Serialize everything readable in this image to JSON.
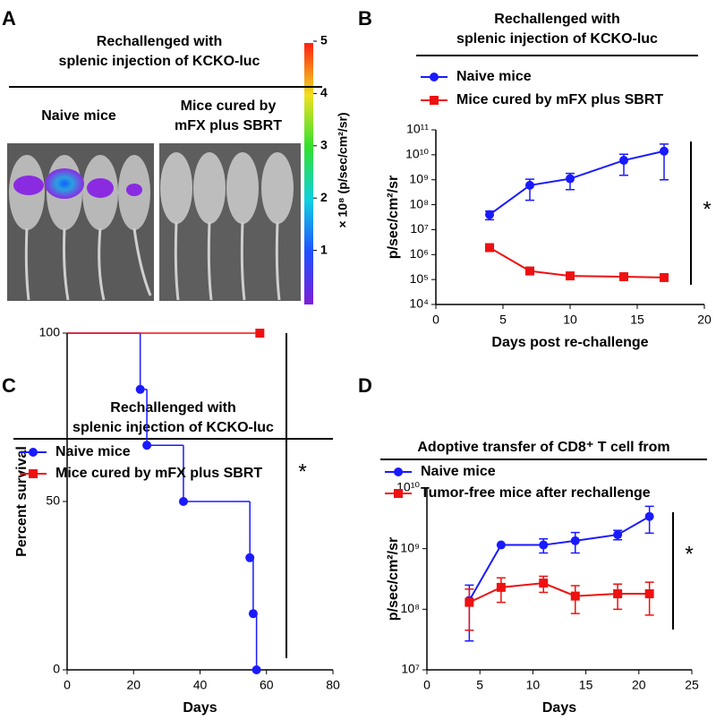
{
  "panel_a": {
    "label": "A",
    "title": [
      "Rechallenged with",
      "splenic injection of KCKO-luc"
    ],
    "groups": [
      [
        "Naive mice"
      ],
      [
        "Mice cured by",
        "mFX plus SBRT"
      ]
    ],
    "colorbar": {
      "clim": [
        0,
        5
      ],
      "ticks": [
        1,
        2,
        3,
        4,
        5
      ],
      "label": "× 10⁸ (p/sec/cm²/sr)"
    }
  },
  "chart_data": [
    {
      "type": "line",
      "label": "B",
      "title": [
        "Rechallenged with",
        "splenic injection of KCKO-luc"
      ],
      "xlabel": "Days post re-challenge",
      "ylabel": "p/sec/cm²/sr",
      "log_y": true,
      "xlim": [
        0,
        20
      ],
      "xticks": [
        0,
        5,
        10,
        15,
        20
      ],
      "ylim": [
        10000,
        100000000000
      ],
      "yticks": [
        {
          "value": 10000,
          "label": "10⁴"
        },
        {
          "value": 100000,
          "label": "10⁵"
        },
        {
          "value": 1000000,
          "label": "10⁶"
        },
        {
          "value": 10000000,
          "label": "10⁷"
        },
        {
          "value": 100000000,
          "label": "10⁸"
        },
        {
          "value": 1000000000,
          "label": "10⁹"
        },
        {
          "value": 10000000000,
          "label": "10¹⁰"
        },
        {
          "value": 100000000000,
          "label": "10¹¹"
        }
      ],
      "annotation": "*",
      "series": [
        {
          "name": "Naive mice",
          "color": "#1a1aff",
          "marker": "circle",
          "x": [
            4,
            7,
            10,
            14,
            17
          ],
          "values": [
            40000000,
            600000000,
            1100000000,
            6000000000,
            14000000000
          ],
          "errors": [
            15000000,
            450000000,
            700000000,
            4500000000,
            13000000000
          ]
        },
        {
          "name": "Mice cured by mFX plus SBRT",
          "color": "#ee1111",
          "marker": "square",
          "x": [
            4,
            7,
            10,
            14,
            17
          ],
          "values": [
            1900000,
            220000,
            140000,
            130000,
            120000
          ],
          "errors": [
            400000,
            30000,
            20000,
            10000,
            10000
          ]
        }
      ]
    },
    {
      "type": "step",
      "label": "C",
      "title": [
        "Rechallenged with",
        "splenic injection of KCKO-luc"
      ],
      "xlabel": "Days",
      "ylabel": "Percent survival",
      "xlim": [
        0,
        80
      ],
      "xticks": [
        0,
        20,
        40,
        60,
        80
      ],
      "ylim": [
        0,
        100
      ],
      "yticks": [
        0,
        50,
        100
      ],
      "annotation": "*",
      "series": [
        {
          "name": "Naive mice",
          "color": "#1a1aff",
          "marker": "circle",
          "x": [
            0,
            22,
            24,
            35,
            55,
            56,
            57
          ],
          "values": [
            100,
            83.3,
            66.7,
            50,
            33.3,
            16.7,
            0
          ]
        },
        {
          "name": "Mice cured by mFX plus SBRT",
          "color": "#ee1111",
          "marker": "square",
          "x": [
            0,
            58
          ],
          "values": [
            100,
            100
          ]
        }
      ]
    },
    {
      "type": "line",
      "label": "D",
      "title": [
        "Adoptive transfer of CD8⁺ T cell from"
      ],
      "xlabel": "Days",
      "ylabel": "p/sec/cm²/sr",
      "log_y": true,
      "xlim": [
        0,
        25
      ],
      "xticks": [
        0,
        5,
        10,
        15,
        20,
        25
      ],
      "ylim": [
        10000000,
        10000000000
      ],
      "yticks": [
        {
          "value": 10000000,
          "label": "10⁷"
        },
        {
          "value": 100000000,
          "label": "10⁸"
        },
        {
          "value": 1000000000,
          "label": "10⁹"
        },
        {
          "value": 10000000000,
          "label": "10¹⁰"
        }
      ],
      "annotation": "*",
      "series": [
        {
          "name": "Naive mice",
          "color": "#1a1aff",
          "marker": "circle",
          "x": [
            4,
            7,
            11,
            14,
            18,
            21
          ],
          "values": [
            140000000,
            1150000000,
            1150000000,
            1350000000,
            1700000000,
            3400000000
          ],
          "errors": [
            110000000,
            0,
            300000000,
            500000000,
            300000000,
            1600000000
          ]
        },
        {
          "name": "Tumor-free mice after rechallenge",
          "color": "#ee1111",
          "marker": "square",
          "x": [
            4,
            7,
            11,
            14,
            18,
            21
          ],
          "values": [
            130000000,
            230000000,
            270000000,
            165000000,
            180000000,
            180000000
          ],
          "errors": [
            85000000,
            100000000,
            80000000,
            80000000,
            80000000,
            100000000
          ]
        }
      ]
    }
  ]
}
